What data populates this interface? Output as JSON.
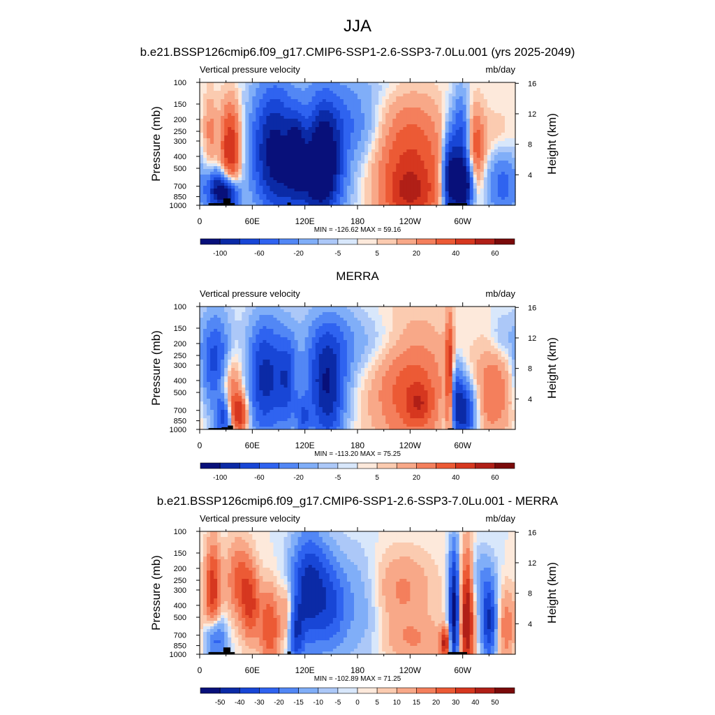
{
  "figure": {
    "title": "JJA"
  },
  "colors": {
    "full": [
      "#08107a",
      "#0b2aa6",
      "#1846d6",
      "#2f63f0",
      "#5287f5",
      "#80aef8",
      "#acc8f8",
      "#d8e7fb",
      "#fde9db",
      "#fbcbb0",
      "#f8a888",
      "#f47f5c",
      "#ec5a35",
      "#d6371f",
      "#b01f17",
      "#7a0a0a"
    ],
    "diff": [
      "#08107a",
      "#0b2aa6",
      "#1846d6",
      "#2f63f0",
      "#5287f5",
      "#80aef8",
      "#acc8f8",
      "#d8e7fb",
      "#fde9db",
      "#fbcbb0",
      "#f8a888",
      "#f47f5c",
      "#ec5a35",
      "#d6371f",
      "#b01f17",
      "#7a0a0a"
    ]
  },
  "chart_data": [
    {
      "type": "heatmap",
      "title": "b.e21.BSSP126cmip6.f09_g17.CMIP6-SSP1-2.6-SSP3-7.0Lu.001 (yrs 2025-2049)",
      "left_string": "Vertical pressure velocity",
      "right_string": "mb/day",
      "ylabel": "Pressure (mb)",
      "ylabel_right": "Height (km)",
      "x_ticks": [
        "0",
        "60E",
        "120E",
        "180",
        "120W",
        "60W"
      ],
      "x_tick_lons": [
        0,
        60,
        120,
        180,
        240,
        300
      ],
      "xlim": [
        0,
        360
      ],
      "y_ticks": [
        "100",
        "150",
        "200",
        "250",
        "300",
        "400",
        "500",
        "700",
        "850",
        "1000"
      ],
      "y_tick_values": [
        100,
        150,
        200,
        250,
        300,
        400,
        500,
        700,
        850,
        1000
      ],
      "ylim": [
        1000,
        100
      ],
      "y_right_ticks": [
        "4",
        "8",
        "12",
        "16"
      ],
      "y_right_values": [
        4,
        8,
        12,
        16
      ],
      "stats": "MIN = -126.62  MAX =  59.16",
      "levels_shown": [
        "-100",
        "-60",
        "-20",
        "-5",
        "5",
        "20",
        "40",
        "60"
      ],
      "palette": "full",
      "colorbar_bins": 16,
      "features": [
        {
          "lon": 35,
          "p": 350,
          "dlon": 8,
          "dp": 0.6,
          "amp": 40
        },
        {
          "lon": 12,
          "p": 250,
          "dlon": 5,
          "dp": 0.5,
          "amp": 14
        },
        {
          "lon": 22,
          "p": 750,
          "dlon": 10,
          "dp": 0.25,
          "amp": -55
        },
        {
          "lon": 35,
          "p": 850,
          "dlon": 8,
          "dp": 0.2,
          "amp": -40
        },
        {
          "lon": 85,
          "p": 320,
          "dlon": 18,
          "dp": 0.75,
          "amp": -55
        },
        {
          "lon": 110,
          "p": 350,
          "dlon": 7,
          "dp": 0.45,
          "amp": -40
        },
        {
          "lon": 140,
          "p": 400,
          "dlon": 14,
          "dp": 0.7,
          "amp": -65
        },
        {
          "lon": 120,
          "p": 700,
          "dlon": 30,
          "dp": 0.45,
          "amp": -30
        },
        {
          "lon": 170,
          "p": 220,
          "dlon": 25,
          "dp": 0.5,
          "amp": -20
        },
        {
          "lon": 240,
          "p": 480,
          "dlon": 28,
          "dp": 0.85,
          "amp": 32
        },
        {
          "lon": 240,
          "p": 800,
          "dlon": 18,
          "dp": 0.3,
          "amp": 20
        },
        {
          "lon": 285,
          "p": 600,
          "dlon": 6,
          "dp": 0.6,
          "amp": -55
        },
        {
          "lon": 300,
          "p": 700,
          "dlon": 8,
          "dp": 0.35,
          "amp": -70
        },
        {
          "lon": 298,
          "p": 300,
          "dlon": 7,
          "dp": 0.6,
          "amp": -35
        },
        {
          "lon": 315,
          "p": 350,
          "dlon": 7,
          "dp": 0.55,
          "amp": 25
        },
        {
          "lon": 345,
          "p": 650,
          "dlon": 13,
          "dp": 0.5,
          "amp": -25
        },
        {
          "lon": 340,
          "p": 300,
          "dlon": 15,
          "dp": 0.4,
          "amp": 8
        },
        {
          "lon": 170,
          "p": 110,
          "dlon": 60,
          "dp": 0.2,
          "amp": -4
        }
      ],
      "terrain": [
        {
          "lon0": 10,
          "lon1": 27,
          "p": 960
        },
        {
          "lon0": 27,
          "lon1": 35,
          "p": 880
        },
        {
          "lon0": 35,
          "lon1": 40,
          "p": 960
        },
        {
          "lon0": 100,
          "lon1": 104,
          "p": 950
        },
        {
          "lon0": 283,
          "lon1": 305,
          "p": 960
        }
      ]
    },
    {
      "type": "heatmap",
      "title": "MERRA",
      "left_string": "Vertical pressure velocity",
      "right_string": "mb/day",
      "ylabel": "Pressure (mb)",
      "ylabel_right": "Height (km)",
      "x_ticks": [
        "0",
        "60E",
        "120E",
        "180",
        "120W",
        "60W"
      ],
      "x_tick_lons": [
        0,
        60,
        120,
        180,
        240,
        300
      ],
      "xlim": [
        0,
        360
      ],
      "y_ticks": [
        "100",
        "150",
        "200",
        "250",
        "300",
        "400",
        "500",
        "700",
        "850",
        "1000"
      ],
      "y_tick_values": [
        100,
        150,
        200,
        250,
        300,
        400,
        500,
        700,
        850,
        1000
      ],
      "ylim": [
        1000,
        100
      ],
      "y_right_ticks": [
        "4",
        "8",
        "12",
        "16"
      ],
      "y_right_values": [
        4,
        8,
        12,
        16
      ],
      "stats": "MIN = -113.20  MAX =  75.25",
      "levels_shown": [
        "-100",
        "-60",
        "-20",
        "-5",
        "5",
        "20",
        "40",
        "60"
      ],
      "palette": "full",
      "colorbar_bins": 16,
      "features": [
        {
          "lon": 18,
          "p": 280,
          "dlon": 12,
          "dp": 0.6,
          "amp": -35
        },
        {
          "lon": 35,
          "p": 500,
          "dlon": 10,
          "dp": 0.5,
          "amp": 25
        },
        {
          "lon": 45,
          "p": 750,
          "dlon": 7,
          "dp": 0.25,
          "amp": 35
        },
        {
          "lon": 28,
          "p": 800,
          "dlon": 7,
          "dp": 0.3,
          "amp": -40
        },
        {
          "lon": 75,
          "p": 380,
          "dlon": 14,
          "dp": 0.75,
          "amp": -45
        },
        {
          "lon": 100,
          "p": 400,
          "dlon": 8,
          "dp": 0.6,
          "amp": -30
        },
        {
          "lon": 145,
          "p": 480,
          "dlon": 14,
          "dp": 0.7,
          "amp": -50
        },
        {
          "lon": 118,
          "p": 800,
          "dlon": 6,
          "dp": 0.3,
          "amp": -25
        },
        {
          "lon": 150,
          "p": 200,
          "dlon": 25,
          "dp": 0.5,
          "amp": -15
        },
        {
          "lon": 240,
          "p": 450,
          "dlon": 30,
          "dp": 0.85,
          "amp": 26
        },
        {
          "lon": 250,
          "p": 620,
          "dlon": 10,
          "dp": 0.25,
          "amp": 20
        },
        {
          "lon": 285,
          "p": 400,
          "dlon": 3,
          "dp": 0.8,
          "amp": 40
        },
        {
          "lon": 300,
          "p": 720,
          "dlon": 10,
          "dp": 0.4,
          "amp": -50
        },
        {
          "lon": 292,
          "p": 450,
          "dlon": 6,
          "dp": 0.4,
          "amp": -20
        },
        {
          "lon": 335,
          "p": 500,
          "dlon": 15,
          "dp": 0.6,
          "amp": 20
        },
        {
          "lon": 210,
          "p": 200,
          "dlon": 30,
          "dp": 0.4,
          "amp": -8
        },
        {
          "lon": 345,
          "p": 180,
          "dlon": 10,
          "dp": 0.3,
          "amp": -8
        }
      ],
      "terrain": [
        {
          "lon0": 10,
          "lon1": 25,
          "p": 975
        },
        {
          "lon0": 25,
          "lon1": 32,
          "p": 960
        },
        {
          "lon0": 32,
          "lon1": 38,
          "p": 930
        },
        {
          "lon0": 283,
          "lon1": 290,
          "p": 980
        }
      ]
    },
    {
      "type": "heatmap",
      "title": "b.e21.BSSP126cmip6.f09_g17.CMIP6-SSP1-2.6-SSP3-7.0Lu.001 - MERRA",
      "left_string": "Vertical pressure velocity",
      "right_string": "mb/day",
      "ylabel": "Pressure (mb)",
      "ylabel_right": "Height (km)",
      "x_ticks": [
        "0",
        "60E",
        "120E",
        "180",
        "120W",
        "60W"
      ],
      "x_tick_lons": [
        0,
        60,
        120,
        180,
        240,
        300
      ],
      "xlim": [
        0,
        360
      ],
      "y_ticks": [
        "100",
        "150",
        "200",
        "250",
        "300",
        "400",
        "500",
        "700",
        "850",
        "1000"
      ],
      "y_tick_values": [
        100,
        150,
        200,
        250,
        300,
        400,
        500,
        700,
        850,
        1000
      ],
      "ylim": [
        1000,
        100
      ],
      "y_right_ticks": [
        "4",
        "8",
        "12",
        "16"
      ],
      "y_right_values": [
        4,
        8,
        12,
        16
      ],
      "stats": "MIN = -102.89  MAX =  71.25",
      "levels_shown": [
        "-50",
        "-40",
        "-30",
        "-20",
        "-15",
        "-10",
        "-5",
        "0",
        "5",
        "10",
        "15",
        "20",
        "30",
        "40",
        "50"
      ],
      "palette": "diff",
      "colorbar_bins": 16,
      "features": [
        {
          "lon": 15,
          "p": 300,
          "dlon": 6,
          "dp": 0.6,
          "amp": 30
        },
        {
          "lon": 45,
          "p": 250,
          "dlon": 10,
          "dp": 0.5,
          "amp": 20
        },
        {
          "lon": 58,
          "p": 400,
          "dlon": 7,
          "dp": 0.45,
          "amp": 25
        },
        {
          "lon": 80,
          "p": 600,
          "dlon": 8,
          "dp": 0.5,
          "amp": 25
        },
        {
          "lon": 18,
          "p": 750,
          "dlon": 8,
          "dp": 0.3,
          "amp": -25
        },
        {
          "lon": 125,
          "p": 300,
          "dlon": 14,
          "dp": 0.7,
          "amp": -40
        },
        {
          "lon": 150,
          "p": 400,
          "dlon": 12,
          "dp": 0.6,
          "amp": -20
        },
        {
          "lon": 110,
          "p": 700,
          "dlon": 6,
          "dp": 0.4,
          "amp": -25
        },
        {
          "lon": 100,
          "p": 450,
          "dlon": 5,
          "dp": 0.4,
          "amp": 15
        },
        {
          "lon": 230,
          "p": 300,
          "dlon": 25,
          "dp": 0.5,
          "amp": 12
        },
        {
          "lon": 245,
          "p": 780,
          "dlon": 25,
          "dp": 0.3,
          "amp": 10
        },
        {
          "lon": 290,
          "p": 450,
          "dlon": 4,
          "dp": 0.8,
          "amp": -50
        },
        {
          "lon": 305,
          "p": 500,
          "dlon": 5,
          "dp": 0.8,
          "amp": 45
        },
        {
          "lon": 280,
          "p": 820,
          "dlon": 4,
          "dp": 0.2,
          "amp": 35
        },
        {
          "lon": 330,
          "p": 550,
          "dlon": 6,
          "dp": 0.5,
          "amp": -35
        },
        {
          "lon": 320,
          "p": 250,
          "dlon": 12,
          "dp": 0.4,
          "amp": -10
        },
        {
          "lon": 350,
          "p": 600,
          "dlon": 7,
          "dp": 0.5,
          "amp": 15
        },
        {
          "lon": 180,
          "p": 400,
          "dlon": 20,
          "dp": 0.7,
          "amp": -10
        }
      ],
      "terrain": [
        {
          "lon0": 10,
          "lon1": 27,
          "p": 960
        },
        {
          "lon0": 27,
          "lon1": 35,
          "p": 880
        },
        {
          "lon0": 35,
          "lon1": 40,
          "p": 960
        },
        {
          "lon0": 100,
          "lon1": 104,
          "p": 950
        },
        {
          "lon0": 283,
          "lon1": 305,
          "p": 960
        }
      ]
    }
  ]
}
